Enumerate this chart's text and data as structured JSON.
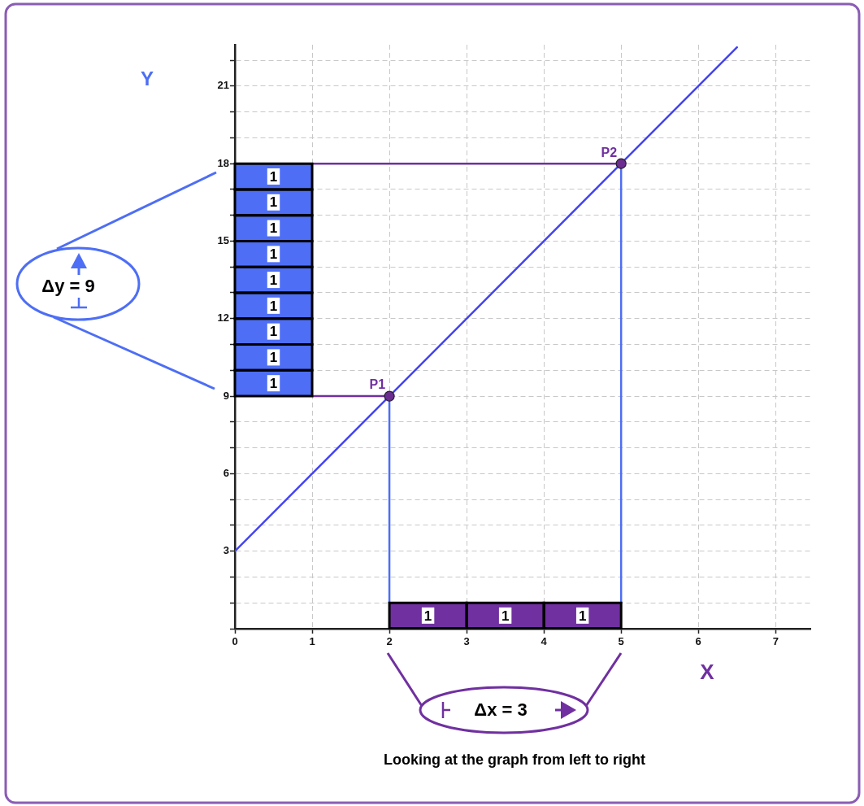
{
  "chart_data": {
    "type": "line",
    "xlabel": "X",
    "ylabel": "Y",
    "xlim": [
      0,
      7.45
    ],
    "ylim": [
      0,
      22.6
    ],
    "xticks": [
      0,
      1,
      2,
      3,
      4,
      5,
      6,
      7
    ],
    "yticks": [
      {
        "value": 0,
        "label": null
      },
      {
        "value": 1,
        "label": null
      },
      {
        "value": 2,
        "label": null
      },
      3,
      {
        "value": 4,
        "label": null
      },
      {
        "value": 5,
        "label": null
      },
      6,
      {
        "value": 7,
        "label": null
      },
      {
        "value": 8,
        "label": null
      },
      9,
      {
        "value": 10,
        "label": null
      },
      {
        "value": 11,
        "label": null
      },
      12,
      {
        "value": 13,
        "label": null
      },
      {
        "value": 14,
        "label": null
      },
      15,
      {
        "value": 16,
        "label": null
      },
      {
        "value": 17,
        "label": null
      },
      18,
      {
        "value": 19,
        "label": null
      },
      {
        "value": 20,
        "label": null
      },
      21,
      {
        "value": 22,
        "label": null
      }
    ],
    "grid": true,
    "series": [
      {
        "type": "bar",
        "color": "#4d6ef5",
        "x": [
          0.5
        ],
        "base": [
          9
        ],
        "values": [
          1
        ],
        "value_labels": [
          "1"
        ]
      },
      {
        "type": "bar",
        "color": "#4d6ef5",
        "x": [
          0.5
        ],
        "base": [
          10
        ],
        "values": [
          1
        ],
        "value_labels": [
          "1"
        ]
      },
      {
        "type": "bar",
        "color": "#4d6ef5",
        "x": [
          0.5
        ],
        "base": [
          11
        ],
        "values": [
          1
        ],
        "value_labels": [
          "1"
        ]
      },
      {
        "type": "bar",
        "color": "#4d6ef5",
        "x": [
          0.5
        ],
        "base": [
          12
        ],
        "values": [
          1
        ],
        "value_labels": [
          "1"
        ]
      },
      {
        "type": "bar",
        "color": "#4d6ef5",
        "x": [
          0.5
        ],
        "base": [
          13
        ],
        "values": [
          1
        ],
        "value_labels": [
          "1"
        ]
      },
      {
        "type": "bar",
        "color": "#4d6ef5",
        "x": [
          0.5
        ],
        "base": [
          14
        ],
        "values": [
          1
        ],
        "value_labels": [
          "1"
        ]
      },
      {
        "type": "bar",
        "color": "#4d6ef5",
        "x": [
          0.5
        ],
        "base": [
          15
        ],
        "values": [
          1
        ],
        "value_labels": [
          "1"
        ]
      },
      {
        "type": "bar",
        "color": "#4d6ef5",
        "x": [
          0.5
        ],
        "base": [
          16
        ],
        "values": [
          1
        ],
        "value_labels": [
          "1"
        ]
      },
      {
        "type": "bar",
        "color": "#4d6ef5",
        "x": [
          0.5
        ],
        "base": [
          17
        ],
        "values": [
          1
        ],
        "value_labels": [
          "1"
        ]
      },
      {
        "type": "bar",
        "color": "#7030a0",
        "x": [
          2.5,
          3.5,
          4.5
        ],
        "base": [
          0,
          0,
          0
        ],
        "values": [
          1,
          1,
          1
        ],
        "value_labels": [
          "1",
          "1",
          "1"
        ]
      },
      {
        "color": "#4343f2",
        "x": [
          0,
          6.5
        ],
        "values": [
          3,
          22.5
        ]
      },
      {
        "color": "#7030a0",
        "x": [
          1,
          5
        ],
        "values": [
          18,
          18
        ]
      },
      {
        "color": "#7030a0",
        "x": [
          1,
          2
        ],
        "values": [
          9,
          9
        ]
      },
      {
        "color": "#4d6ef5",
        "x": [
          2,
          2
        ],
        "values": [
          1,
          9
        ]
      },
      {
        "color": "#4d6ef5",
        "x": [
          5,
          5
        ],
        "values": [
          1,
          18
        ]
      },
      {
        "type": "scatter",
        "color": "#6b2d8f",
        "x": [
          2,
          5
        ],
        "values": [
          9,
          18
        ],
        "marker": "circle"
      }
    ],
    "annotations": [
      {
        "text": "P1",
        "x": 2,
        "y": 9
      },
      {
        "text": "P2",
        "x": 5,
        "y": 18
      },
      "Δy = 9",
      "Δx = 3",
      "Looking at the graph from left to right"
    ]
  }
}
